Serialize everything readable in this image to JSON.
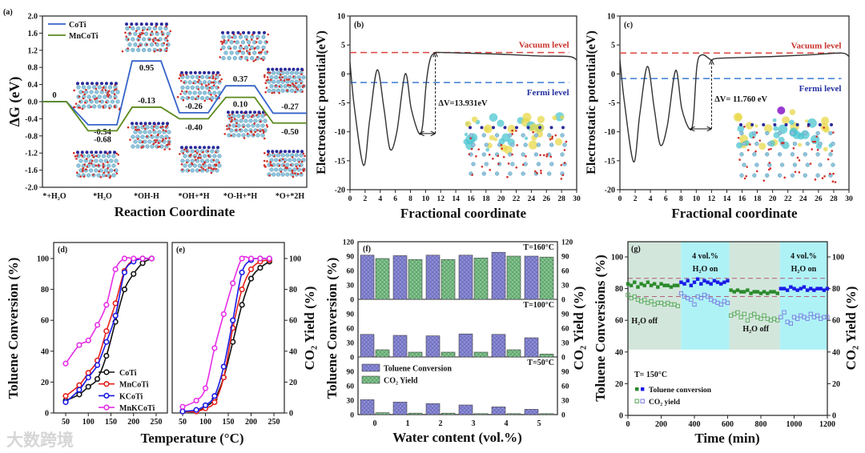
{
  "watermark": "大数跨境",
  "chart_data": [
    {
      "id": "a",
      "type": "line",
      "panel_label": "(a)",
      "xlabel": "Reaction Coordinate",
      "ylabel": "ΔG (eV)",
      "ylim": [
        -2,
        2
      ],
      "ytick_labels": [
        "-2.0",
        "-1.6",
        "-1.2",
        "-0.8",
        "-0.4",
        "0.0",
        "0.4",
        "0.8",
        "1.2",
        "1.6",
        "2.0"
      ],
      "categories": [
        "*+H₂O",
        "*H₂O",
        "*OH-H",
        "*OH+*H",
        "*O-H+*H",
        "*O+*2H"
      ],
      "legend": "top-left",
      "series": [
        {
          "name": "CoTi",
          "color": "#3563c9",
          "values": [
            0,
            -0.54,
            0.95,
            -0.26,
            0.37,
            -0.27
          ],
          "labels": [
            "0",
            "-0.54",
            "0.95",
            "-0.26",
            "0.37",
            "-0.27"
          ]
        },
        {
          "name": "MnCoTi",
          "color": "#5b8a1c",
          "values": [
            0,
            -0.68,
            -0.13,
            -0.4,
            0.1,
            -0.5
          ],
          "labels": [
            null,
            "-0.68",
            "-0.13",
            "-0.40",
            "0.10",
            "-0.50"
          ]
        }
      ]
    },
    {
      "id": "b",
      "type": "line",
      "panel_label": "(b)",
      "xlabel": "Fractional coordinate",
      "ylabel": "Electrostatic potential(eV)",
      "xlim": [
        0,
        30
      ],
      "ylim": [
        -20,
        10
      ],
      "xtick_labels": [
        "0",
        "2",
        "4",
        "6",
        "8",
        "10",
        "12",
        "14",
        "16",
        "18",
        "20",
        "22",
        "24",
        "26",
        "28",
        "30"
      ],
      "ytick_labels": [
        "-20",
        "-15",
        "-10",
        "-5",
        "0",
        "5",
        "10"
      ],
      "series": [
        {
          "name": "potential",
          "color": "#333333",
          "x": [
            0,
            0.6,
            1.8,
            2.6,
            3.6,
            4.5,
            5.3,
            6.2,
            7.3,
            8.1,
            9.1,
            9.6,
            10.1,
            10.6,
            11.2,
            12,
            15,
            20,
            25,
            29,
            30
          ],
          "y": [
            2,
            -6,
            -15.8,
            -8,
            0.7,
            -6,
            -13,
            -10,
            0,
            -6,
            -10.2,
            -9,
            -1.5,
            2.5,
            3.6,
            3.7,
            3.6,
            3.4,
            3.1,
            3,
            2.4
          ]
        }
      ],
      "vacuum_level": 3.7,
      "fermi_level": -1.5,
      "vacuum_label": "Vacuum level",
      "fermi_label": "Fermi level",
      "delta_label": "ΔV=13.931eV",
      "arrow": {
        "x": 11.3,
        "from": -10.3,
        "to": 3.7,
        "xstart": 9.2
      },
      "vacuum_color": "#d9453f",
      "fermi_color": "#3a7bd5"
    },
    {
      "id": "c",
      "type": "line",
      "panel_label": "(c)",
      "xlabel": "Fractional coordinate",
      "ylabel": "Electrostatic potential(eV)",
      "xlim": [
        0,
        30
      ],
      "ylim": [
        -20,
        10
      ],
      "xtick_labels": [
        "0",
        "2",
        "4",
        "6",
        "8",
        "10",
        "12",
        "14",
        "16",
        "18",
        "20",
        "22",
        "24",
        "26",
        "28",
        "30"
      ],
      "ytick_labels": [
        "-20",
        "-15",
        "-10",
        "-5",
        "0",
        "5",
        "10"
      ],
      "series": [
        {
          "name": "potential",
          "color": "#333333",
          "x": [
            0,
            0.6,
            1.8,
            2.6,
            3.6,
            4.5,
            5.3,
            6.2,
            7.3,
            8.1,
            9.1,
            9.6,
            10.1,
            10.8,
            12,
            13,
            20,
            25,
            29,
            30
          ],
          "y": [
            2.4,
            -5,
            -15.2,
            -7,
            1.3,
            -6,
            -12.3,
            -9,
            0.6,
            -6,
            -9.5,
            -8,
            1.5,
            3.3,
            2.4,
            2.7,
            3,
            3.3,
            3.6,
            3
          ]
        }
      ],
      "vacuum_level": 3.6,
      "fermi_level": -0.8,
      "vacuum_label": "Vacuum level",
      "fermi_label": "Fermi level",
      "delta_label": "ΔV= 11.760 eV",
      "arrow": {
        "x": 12,
        "from": -9.5,
        "to": 2.4,
        "xstart": 9.2
      },
      "vacuum_color": "#d9453f",
      "fermi_color": "#3a7bd5"
    },
    {
      "id": "d",
      "type": "line",
      "panel_label": "(d)",
      "xlabel": "Temperature (°C)",
      "ylabel": "Toluene Conversion (%)",
      "xlim": [
        50,
        250
      ],
      "ylim": [
        0,
        100
      ],
      "xtick_labels": [
        "50",
        "100",
        "150",
        "200",
        "250"
      ],
      "ytick_labels": [
        "0",
        "20",
        "40",
        "60",
        "80",
        "100"
      ],
      "x": [
        50,
        80,
        100,
        120,
        140,
        160,
        180,
        200,
        220,
        240
      ],
      "legend": "bottom-right",
      "series": [
        {
          "name": "CoTi",
          "color": "#111111",
          "values": [
            8,
            12,
            17,
            22,
            37,
            59,
            80,
            90,
            97,
            100
          ]
        },
        {
          "name": "MnCoTi",
          "color": "#e8201a",
          "values": [
            11,
            18,
            26,
            34,
            53,
            71,
            92,
            99,
            100,
            100
          ]
        },
        {
          "name": "KCoTi",
          "color": "#1a1ae6",
          "values": [
            7,
            15,
            23,
            31,
            46,
            63,
            91,
            98,
            100,
            100
          ]
        },
        {
          "name": "MnKCoTi",
          "color": "#e62ee6",
          "values": [
            32,
            44,
            47,
            57,
            70,
            93,
            100,
            100,
            100,
            100
          ]
        }
      ]
    },
    {
      "id": "e",
      "type": "line",
      "panel_label": "(e)",
      "xlabel": "",
      "ylabel": "CO₂ Yield (%)",
      "xlim": [
        50,
        250
      ],
      "ylim": [
        0,
        100
      ],
      "xtick_labels": [
        "50",
        "100",
        "150",
        "200",
        "250"
      ],
      "ytick_labels": [
        "0",
        "20",
        "40",
        "60",
        "80",
        "100"
      ],
      "x": [
        50,
        80,
        100,
        120,
        140,
        160,
        180,
        200,
        220,
        240
      ],
      "series": [
        {
          "name": "CoTi",
          "color": "#111111",
          "values": [
            1,
            1,
            4,
            9,
            23,
            46,
            70,
            87,
            94,
            98
          ]
        },
        {
          "name": "MnCoTi",
          "color": "#e8201a",
          "values": [
            1,
            1,
            3,
            7,
            23,
            55,
            80,
            93,
            98,
            99
          ]
        },
        {
          "name": "KCoTi",
          "color": "#1a1ae6",
          "values": [
            1,
            2,
            5,
            11,
            30,
            60,
            91,
            99,
            100,
            100
          ]
        },
        {
          "name": "MnKCoTi",
          "color": "#e62ee6",
          "values": [
            4,
            8,
            16,
            42,
            64,
            84,
            100,
            100,
            100,
            100
          ]
        }
      ]
    },
    {
      "id": "f",
      "type": "bar",
      "panel_label": "(f)",
      "xlabel": "Water content (vol.%)",
      "ylabel": "Toluene Conversion (%)",
      "ylabel_right": "CO₂ Yield (%)",
      "categories": [
        "0",
        "1",
        "2",
        "3",
        "4",
        "5"
      ],
      "legend": [
        "Toluene Conversion",
        "CO₂ Yield"
      ],
      "colors": {
        "toluene": "#8c8ce0",
        "co2": "#7fca8a"
      },
      "subpanels": [
        {
          "label": "T=160°C",
          "ylim": [
            0,
            120
          ],
          "ytick_labels": [
            "0",
            "30",
            "60",
            "90",
            "120"
          ],
          "toluene": [
            92,
            91,
            92,
            92,
            98,
            90
          ],
          "co2": [
            85,
            83,
            83,
            86,
            90,
            88
          ]
        },
        {
          "label": "T=100°C",
          "ylim": [
            0,
            120
          ],
          "ytick_labels": [
            "0",
            "30",
            "60",
            "90"
          ],
          "toluene": [
            47,
            45,
            44,
            48,
            47,
            40
          ],
          "co2": [
            15,
            10,
            10,
            10,
            15,
            6
          ]
        },
        {
          "label": "T=50°C",
          "ylim": [
            0,
            120
          ],
          "ytick_labels": [
            "0",
            "30",
            "60",
            "90"
          ],
          "toluene": [
            31,
            26,
            23,
            20,
            16,
            11
          ],
          "co2": [
            4,
            3,
            3,
            2,
            2,
            2
          ]
        }
      ]
    },
    {
      "id": "g",
      "type": "scatter",
      "panel_label": "(g)",
      "xlabel": "Time (min)",
      "ylabel": "Toluene Conversions (%)",
      "ylabel_right": "CO₂ Yield (%)",
      "xlim": [
        0,
        1200
      ],
      "ylim": [
        0,
        110
      ],
      "xtick_labels": [
        "0",
        "200",
        "400",
        "600",
        "800",
        "1000",
        "1200"
      ],
      "ytick_labels": [
        "0",
        "20",
        "40",
        "60",
        "80",
        "100"
      ],
      "reference_lines": [
        86.5,
        75
      ],
      "temperature_label": "T= 150°C",
      "legend": [
        "Toluene conversion",
        "CO₂ yield"
      ],
      "regions": [
        {
          "from": 0,
          "to": 320,
          "state": "off",
          "label": "H₂O off",
          "color": "#d3e6dc"
        },
        {
          "from": 320,
          "to": 610,
          "state": "on",
          "label_1": "4 vol.%",
          "label_2": "H₂O on",
          "color": "#aef2f6"
        },
        {
          "from": 610,
          "to": 915,
          "state": "off",
          "label": "H₂O off",
          "color": "#d3e6dc"
        },
        {
          "from": 915,
          "to": 1200,
          "state": "on",
          "label_1": "4 vol.%",
          "label_2": "H₂O on",
          "color": "#aef2f6"
        }
      ],
      "segments": [
        {
          "t0": 0,
          "dt": 20,
          "color": "#2a8a2a",
          "co2_color": "#5aaa5a",
          "toluene": [
            83,
            82,
            84,
            81,
            83,
            82,
            84,
            82,
            83,
            81,
            83,
            82,
            82,
            81,
            82,
            82
          ],
          "co2": [
            76,
            74,
            75,
            73,
            72,
            73,
            71,
            72,
            70,
            71,
            71,
            70,
            71,
            70,
            70,
            69
          ]
        },
        {
          "t0": 320,
          "dt": 20,
          "color": "#1a1ae6",
          "co2_color": "#7a7ae0",
          "toluene": [
            84,
            83,
            85,
            82,
            84,
            86,
            83,
            85,
            84,
            83,
            85,
            84,
            83,
            84,
            85
          ],
          "co2": [
            77,
            75,
            74,
            73,
            70,
            75,
            74,
            76,
            75,
            73,
            72,
            71,
            70,
            72,
            71
          ]
        },
        {
          "t0": 620,
          "dt": 20,
          "color": "#2a8a2a",
          "co2_color": "#5aaa5a",
          "toluene": [
            79,
            78,
            79,
            78,
            78,
            79,
            77,
            78,
            78,
            77,
            78,
            77,
            78,
            78,
            77
          ],
          "co2": [
            63,
            64,
            65,
            62,
            64,
            60,
            63,
            64,
            62,
            61,
            63,
            61,
            60,
            61,
            60
          ]
        },
        {
          "t0": 920,
          "dt": 20,
          "color": "#1a1ae6",
          "co2_color": "#7a7ae0",
          "toluene": [
            80,
            80,
            79,
            81,
            80,
            79,
            80,
            81,
            79,
            80,
            79,
            80,
            80,
            79,
            80
          ],
          "co2": [
            62,
            65,
            59,
            58,
            62,
            61,
            63,
            62,
            61,
            64,
            62,
            63,
            61,
            62,
            62
          ]
        }
      ]
    }
  ]
}
